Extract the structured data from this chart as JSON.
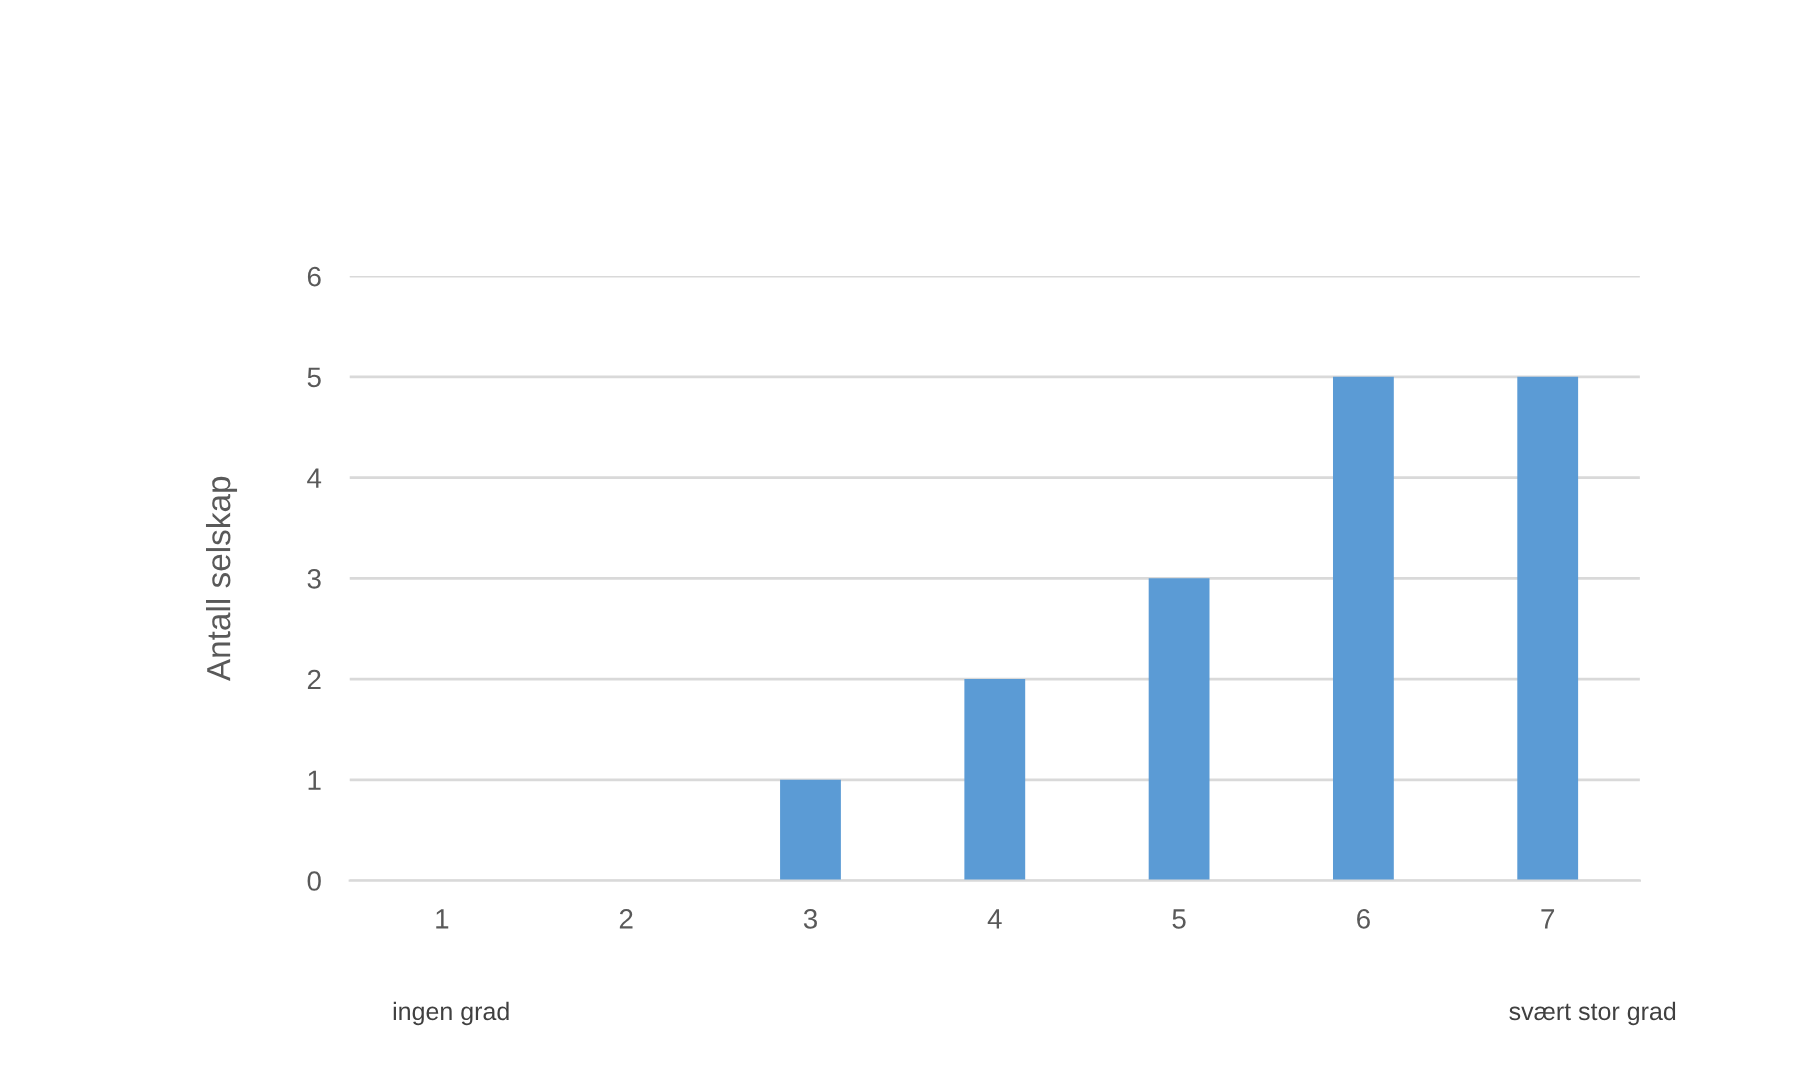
{
  "chart_data": {
    "type": "bar",
    "ylabel": "Antall selskap",
    "categories": [
      "1",
      "2",
      "3",
      "4",
      "5",
      "6",
      "7"
    ],
    "values": [
      0,
      0,
      1,
      2,
      3,
      5,
      5
    ],
    "color": "#5b9bd5",
    "ylim": [
      0,
      6
    ],
    "yticks": [
      0,
      1,
      2,
      3,
      4,
      5,
      6
    ],
    "grid": "y",
    "annotations": [
      "ingen grad",
      "svært stor grad"
    ]
  }
}
